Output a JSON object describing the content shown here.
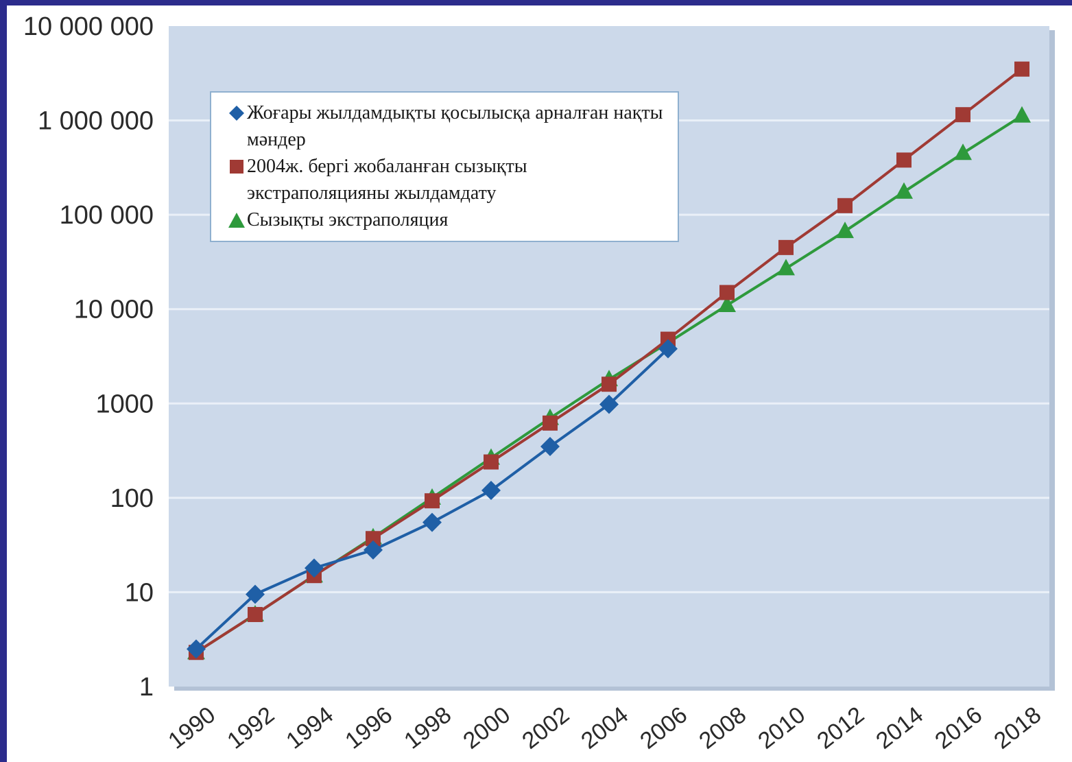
{
  "chart_data": {
    "type": "line",
    "x": [
      1990,
      1992,
      1994,
      1996,
      1998,
      2000,
      2002,
      2004,
      2006,
      2008,
      2010,
      2012,
      2014,
      2016,
      2018
    ],
    "x_tick_labels": [
      "1990",
      "1992",
      "1994",
      "1996",
      "1998",
      "2000",
      "2002",
      "2004",
      "2006",
      "2008",
      "2010",
      "2012",
      "2014",
      "2016",
      "2018"
    ],
    "y_scale": "log",
    "ylim": [
      1,
      10000000
    ],
    "y_tick_values": [
      1,
      10,
      100,
      1000,
      10000,
      100000,
      1000000,
      10000000
    ],
    "y_tick_labels": [
      "1",
      "10",
      "100",
      "1000",
      "10 000",
      "100 000",
      "1 000 000",
      "10 000 000"
    ],
    "grid": true,
    "legend_position": "top-left",
    "series": [
      {
        "name": "Жоғары жылдамдықты қосылысқа арналған нақты мәндер",
        "marker": "diamond",
        "color": "#1f5fa6",
        "x": [
          1990,
          1992,
          1994,
          1996,
          1998,
          2000,
          2002,
          2004,
          2006
        ],
        "values": [
          2.5,
          9.5,
          18,
          28,
          55,
          120,
          350,
          980,
          3800
        ]
      },
      {
        "name": "2004ж. бергі жобаланған сызықты экстраполяцияны жылдамдату",
        "marker": "square",
        "color": "#a03a34",
        "x": [
          1990,
          1992,
          1994,
          1996,
          1998,
          2000,
          2002,
          2004,
          2006,
          2008,
          2010,
          2012,
          2014,
          2016,
          2018
        ],
        "values": [
          2.3,
          5.8,
          15,
          37,
          93,
          240,
          620,
          1600,
          4800,
          15000,
          45000,
          125000,
          380000,
          1150000,
          3500000
        ]
      },
      {
        "name": "Сызықты экстраполяция",
        "marker": "triangle",
        "color": "#2e9a3c",
        "x": [
          1990,
          1992,
          1994,
          1996,
          1998,
          2000,
          2002,
          2004,
          2006,
          2008,
          2010,
          2012,
          2014,
          2016,
          2018
        ],
        "values": [
          2.3,
          5.8,
          15,
          38,
          100,
          265,
          700,
          1800,
          4400,
          11000,
          27000,
          67000,
          175000,
          450000,
          1120000
        ]
      }
    ]
  },
  "legend": {
    "items": [
      {
        "marker": "diamond",
        "color": "#1f5fa6",
        "label": "Жоғары жылдамдықты қосылысқа арналған нақты мәндер"
      },
      {
        "marker": "square",
        "color": "#a03a34",
        "label": "2004ж. бергі жобаланған сызықты экстраполяцияны жылдамдату"
      },
      {
        "marker": "triangle",
        "color": "#2e9a3c",
        "label": "Сызықты экстраполяция"
      }
    ]
  },
  "colors": {
    "plot_background": "#ccd9ea",
    "gridline": "#eaf0f8",
    "frame_shadow": "#b3c2d6",
    "slide_border": "#2c2c8c"
  }
}
